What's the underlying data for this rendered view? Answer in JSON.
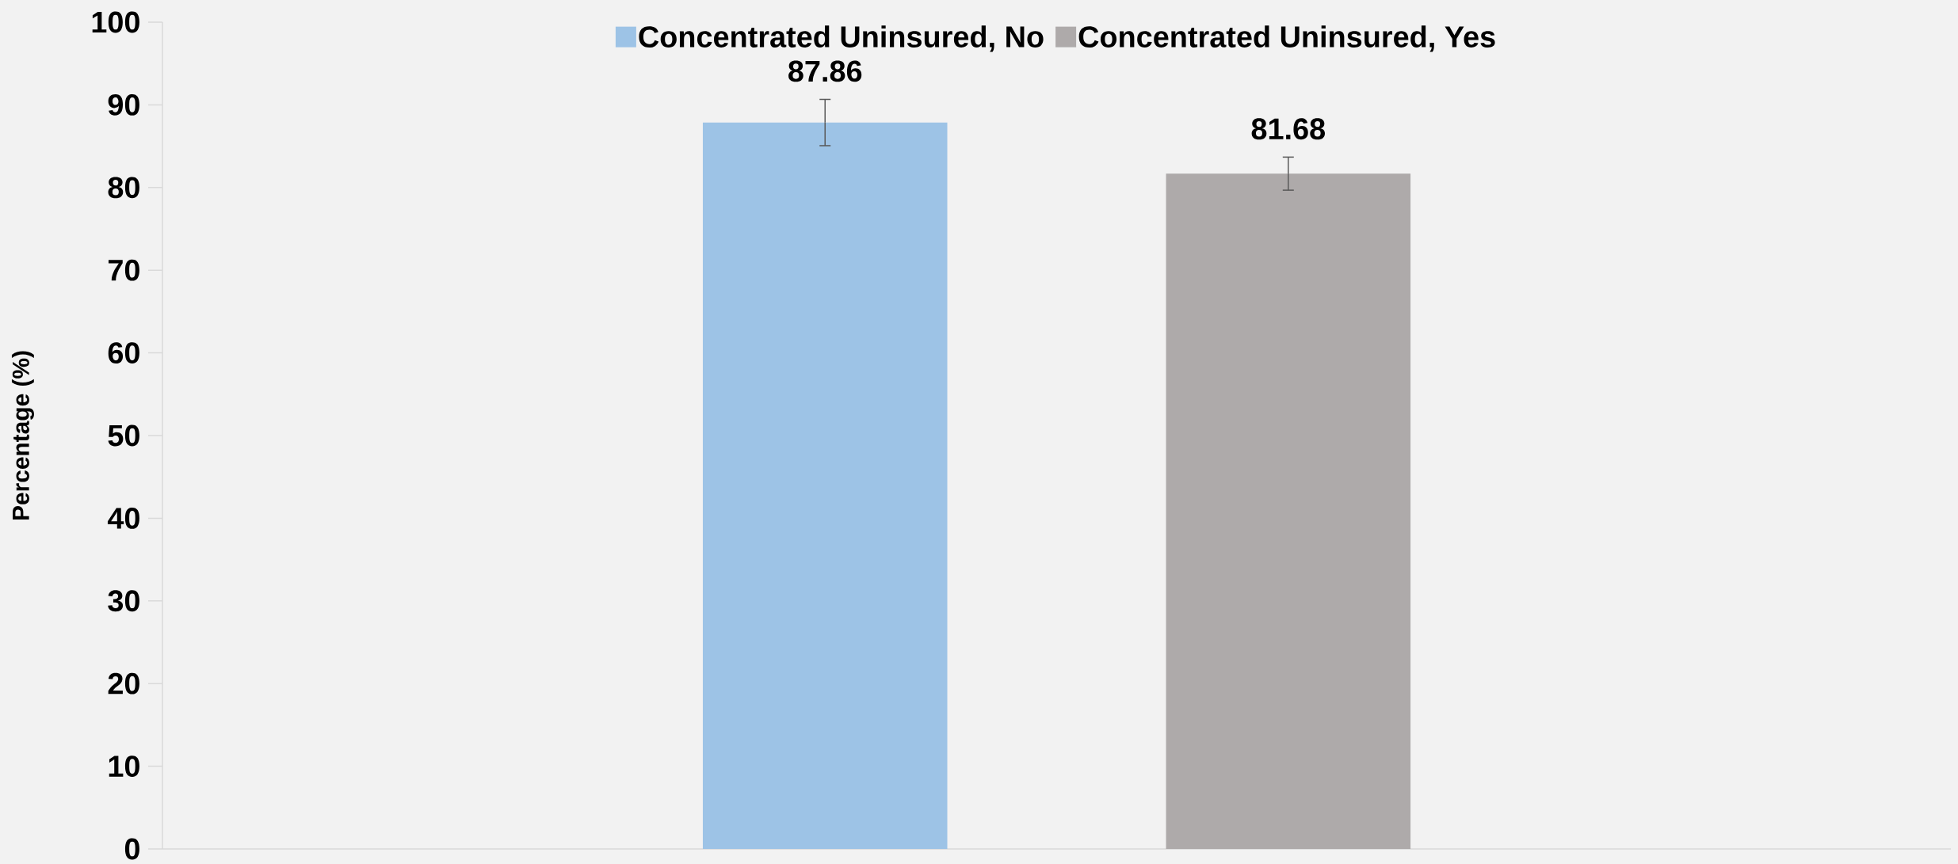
{
  "chart_data": {
    "type": "bar",
    "ylabel": "Percentage (%)",
    "categories": [
      null
    ],
    "series": [
      {
        "name": "Concentrated Uninsured, No",
        "color": "#9dc3e6",
        "values": [
          87.86
        ],
        "errors": [
          2.8
        ]
      },
      {
        "name": "Concentrated Uninsured, Yes",
        "color": "#aeaaaa",
        "values": [
          81.68
        ],
        "errors": [
          2.0
        ]
      }
    ],
    "ylim": [
      0,
      100
    ],
    "yticks": [
      0,
      10,
      20,
      30,
      40,
      50,
      60,
      70,
      80,
      90,
      100
    ],
    "data_labels": true,
    "legend": "top",
    "grid": false
  }
}
